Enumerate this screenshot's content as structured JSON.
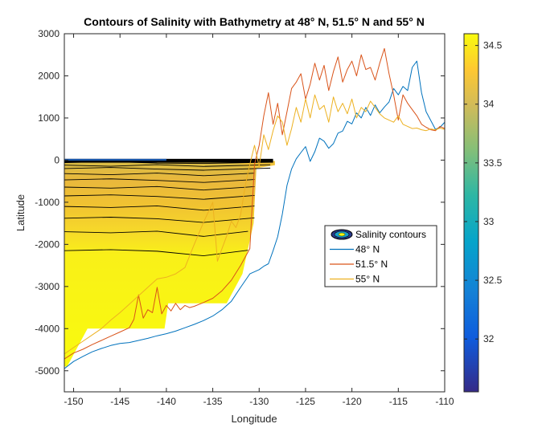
{
  "chart_data": {
    "type": "line",
    "title": "Contours of Salinity with Bathymetry at 48° N, 51.5° N and 55° N",
    "xlabel": "Longitude",
    "ylabel": "Latitude",
    "xlim": [
      -151,
      -110
    ],
    "ylim": [
      -5500,
      3000
    ],
    "xticks": [
      -150,
      -145,
      -140,
      -135,
      -130,
      -125,
      -120,
      -115,
      -110
    ],
    "yticks": [
      -5000,
      -4000,
      -3000,
      -2000,
      -1000,
      0,
      1000,
      2000,
      3000
    ],
    "grid": false,
    "legend_position": "right-center",
    "legend": [
      "Salinity contours",
      "48° N",
      "51.5° N",
      "55° N"
    ],
    "colorbar": {
      "range": [
        31.55,
        34.6
      ],
      "ticks": [
        32,
        32.5,
        33,
        33.5,
        34,
        34.5
      ],
      "colormap": "parula"
    },
    "salinity_field": {
      "x_extent": [
        -151,
        -130.3
      ],
      "y_extent": [
        -5000,
        0
      ],
      "fill_colors": {
        "surface": "#c7c244",
        "upper": "#e6b93a",
        "mid": "#f5cf2b",
        "deep": "#f9fa14"
      },
      "contour_depths": [
        -60,
        -120,
        -200,
        -320,
        -470,
        -640,
        -850,
        -1100,
        -1380,
        -1700,
        -2150
      ]
    },
    "series": [
      {
        "name": "48° N",
        "color": "#0072bd",
        "x": [
          -151,
          -150,
          -149,
          -148,
          -147,
          -146,
          -145,
          -144,
          -143,
          -142,
          -141,
          -140,
          -139,
          -138,
          -137,
          -136,
          -135,
          -134,
          -133,
          -132,
          -131,
          -130,
          -129.5,
          -129,
          -128.5,
          -128,
          -127.5,
          -127,
          -126.5,
          -126,
          -125.5,
          -125,
          -124.5,
          -124,
          -123.5,
          -123,
          -122.5,
          -122,
          -121.5,
          -121,
          -120.5,
          -120,
          -119.5,
          -119,
          -118.5,
          -118,
          -117.5,
          -117,
          -116.5,
          -116,
          -115.5,
          -115,
          -114.5,
          -114,
          -113.5,
          -113,
          -112.5,
          -112,
          -111.5,
          -111,
          -110.5,
          -110
        ],
        "y": [
          -4950,
          -4780,
          -4660,
          -4550,
          -4470,
          -4400,
          -4350,
          -4330,
          -4280,
          -4230,
          -4170,
          -4120,
          -4060,
          -3980,
          -3900,
          -3810,
          -3700,
          -3550,
          -3350,
          -3020,
          -2700,
          -2600,
          -2520,
          -2460,
          -2150,
          -1820,
          -1280,
          -600,
          -210,
          30,
          180,
          320,
          -30,
          200,
          520,
          450,
          280,
          390,
          640,
          690,
          920,
          860,
          1120,
          1000,
          1250,
          1060,
          1310,
          1120,
          1260,
          1380,
          1700,
          1550,
          1750,
          1650,
          2200,
          2350,
          1600,
          1150,
          940,
          730,
          780,
          900
        ]
      },
      {
        "name": "51.5° N",
        "color": "#d95319",
        "x": [
          -151,
          -150,
          -149,
          -148,
          -147,
          -146,
          -145,
          -144,
          -143.5,
          -143,
          -142.5,
          -142,
          -141.5,
          -141,
          -140.5,
          -140,
          -139.5,
          -139,
          -138.5,
          -138,
          -137.5,
          -137,
          -136,
          -135,
          -134,
          -133,
          -132,
          -131,
          -130.5,
          -130,
          -129.5,
          -129,
          -128.5,
          -128,
          -127.5,
          -127,
          -126.5,
          -126,
          -125.5,
          -125,
          -124.5,
          -124,
          -123.5,
          -123,
          -122.5,
          -122,
          -121.5,
          -121,
          -120.5,
          -120,
          -119.5,
          -119,
          -118.5,
          -118,
          -117.5,
          -117,
          -116.5,
          -116,
          -115.5,
          -115,
          -114.5,
          -114,
          -113.5,
          -113,
          -112.5,
          -112,
          -111.5,
          -111,
          -110.5,
          -110
        ],
        "y": [
          -4720,
          -4580,
          -4490,
          -4380,
          -4280,
          -4180,
          -4080,
          -3980,
          -3780,
          -3200,
          -3750,
          -3550,
          -3620,
          -3020,
          -3650,
          -3450,
          -3580,
          -3400,
          -3550,
          -3450,
          -3500,
          -3470,
          -3380,
          -3280,
          -3100,
          -2850,
          -2500,
          -2100,
          -100,
          350,
          1050,
          1600,
          850,
          1350,
          600,
          1150,
          1700,
          1850,
          2050,
          1450,
          1800,
          2300,
          1900,
          2250,
          1650,
          2100,
          2450,
          1850,
          2150,
          2350,
          2000,
          2500,
          2150,
          2200,
          1900,
          2300,
          2650,
          2050,
          1550,
          950,
          1550,
          1350,
          1200,
          1050,
          850,
          780,
          720,
          700,
          800,
          750
        ]
      },
      {
        "name": "55° N",
        "color": "#edb120",
        "x": [
          -151,
          -150,
          -149,
          -148,
          -147,
          -146,
          -145,
          -144,
          -143,
          -142,
          -141,
          -140,
          -139,
          -138,
          -137,
          -136,
          -135,
          -134.5,
          -134,
          -133.5,
          -133,
          -132.5,
          -132,
          -131.5,
          -131,
          -130.5,
          -130,
          -129.5,
          -129,
          -128.5,
          -128,
          -127.5,
          -127,
          -126.5,
          -126,
          -125.5,
          -125,
          -124.5,
          -124,
          -123.5,
          -123,
          -122.5,
          -122,
          -121.5,
          -121,
          -120.5,
          -120,
          -119.5,
          -119,
          -118.5,
          -118,
          -117.5,
          -117,
          -116.5,
          -116,
          -115.5,
          -115,
          -114.5,
          -114,
          -113.5,
          -113,
          -112.5,
          -112,
          -111.5,
          -111,
          -110.5,
          -110
        ],
        "y": [
          -4600,
          -4450,
          -4300,
          -4150,
          -4000,
          -3800,
          -3620,
          -3420,
          -3220,
          -3020,
          -2820,
          -2780,
          -2700,
          -2550,
          -2000,
          -1480,
          -1000,
          -2400,
          -2100,
          -1800,
          -1450,
          -1600,
          -1300,
          -600,
          -100,
          350,
          -150,
          600,
          250,
          700,
          1050,
          900,
          350,
          750,
          1250,
          900,
          1450,
          1000,
          1550,
          1200,
          1300,
          900,
          1500,
          1150,
          1350,
          1100,
          1450,
          1000,
          1250,
          1150,
          1400,
          1250,
          1100,
          1000,
          950,
          900,
          1050,
          850,
          800,
          750,
          760,
          720,
          700,
          740,
          720,
          760,
          730
        ]
      }
    ]
  }
}
